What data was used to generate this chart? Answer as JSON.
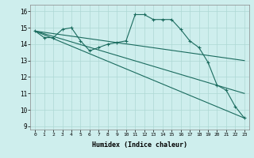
{
  "title": "",
  "xlabel": "Humidex (Indice chaleur)",
  "background_color": "#ceeeed",
  "grid_color": "#aed8d4",
  "line_color": "#1a6b5e",
  "xlim": [
    -0.5,
    23.5
  ],
  "ylim": [
    8.8,
    16.4
  ],
  "yticks": [
    9,
    10,
    11,
    12,
    13,
    14,
    15,
    16
  ],
  "xticks": [
    0,
    1,
    2,
    3,
    4,
    5,
    6,
    7,
    8,
    9,
    10,
    11,
    12,
    13,
    14,
    15,
    16,
    17,
    18,
    19,
    20,
    21,
    22,
    23
  ],
  "lines": [
    {
      "x": [
        0,
        1,
        2,
        3,
        4,
        5,
        6,
        7,
        8,
        9,
        10,
        11,
        12,
        13,
        14,
        15,
        16,
        17,
        18,
        19,
        20,
        21,
        22,
        23
      ],
      "y": [
        14.8,
        14.4,
        14.4,
        14.9,
        15.0,
        14.2,
        13.6,
        13.8,
        14.0,
        14.1,
        14.2,
        15.8,
        15.8,
        15.5,
        15.5,
        15.5,
        14.9,
        14.2,
        13.8,
        12.9,
        11.5,
        11.2,
        10.2,
        9.5
      ],
      "marker": "+"
    },
    {
      "x": [
        0,
        23
      ],
      "y": [
        14.8,
        13.0
      ],
      "marker": null
    },
    {
      "x": [
        0,
        23
      ],
      "y": [
        14.8,
        9.5
      ],
      "marker": null
    },
    {
      "x": [
        0,
        23
      ],
      "y": [
        14.8,
        11.0
      ],
      "marker": null
    }
  ]
}
